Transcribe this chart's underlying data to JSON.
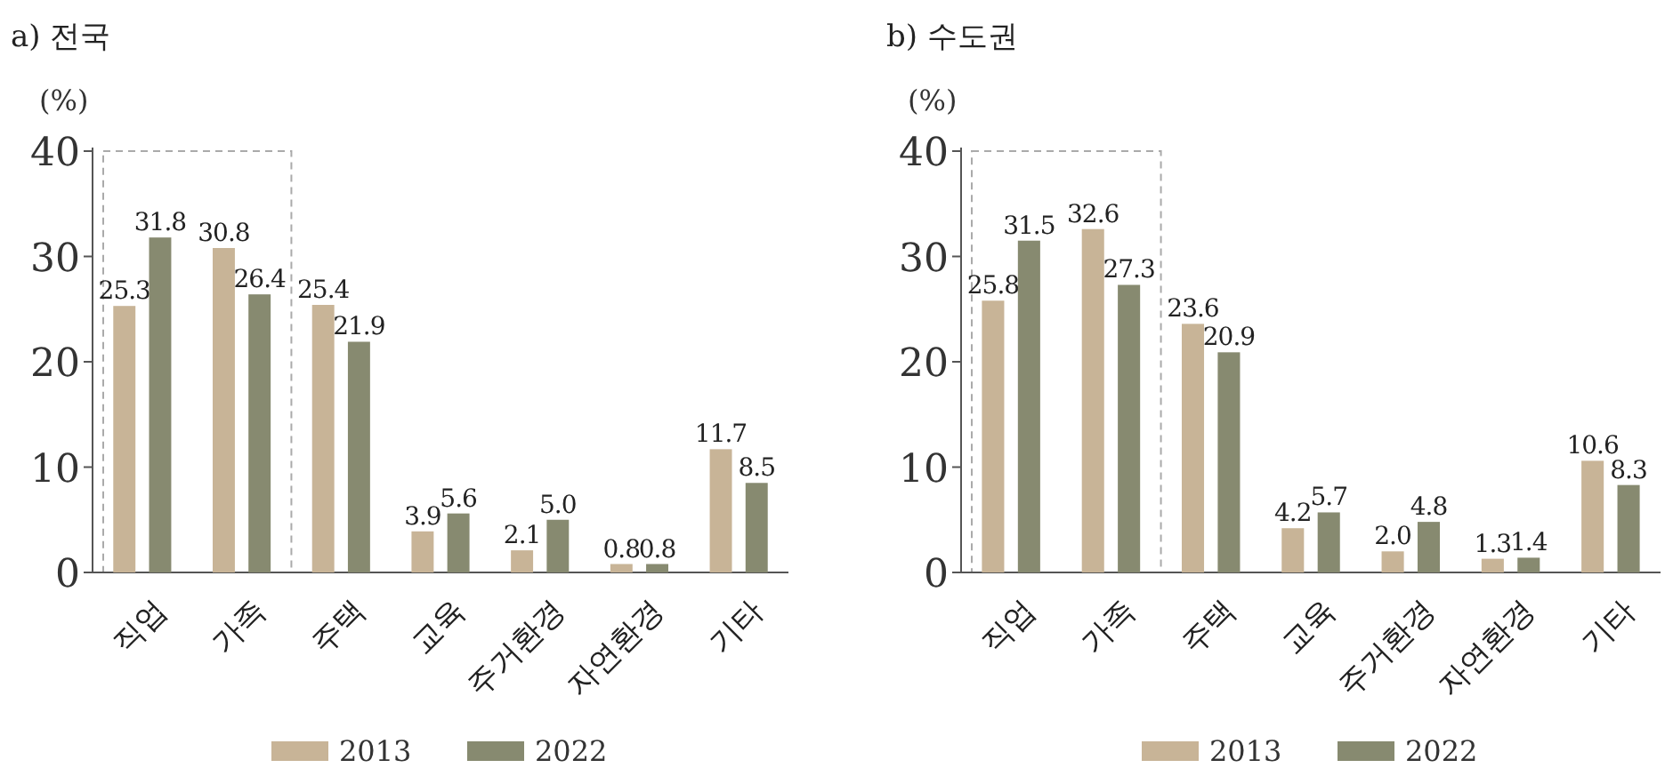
{
  "chart_data": [
    {
      "type": "bar",
      "title": "a) 전국",
      "ylabel": "(%)",
      "categories": [
        "직업",
        "가족",
        "주택",
        "교육",
        "주거환경",
        "자연환경",
        "기타"
      ],
      "series": [
        {
          "name": "2013",
          "color": "#c8b497",
          "values": [
            25.3,
            30.8,
            25.4,
            3.9,
            2.1,
            0.8,
            11.7
          ],
          "value_labels": [
            "25.3",
            "30.8",
            "25.4",
            "3.9",
            "2.1",
            "0.8",
            "11.7"
          ]
        },
        {
          "name": "2022",
          "color": "#878a70",
          "values": [
            31.8,
            26.4,
            21.9,
            5.6,
            5.0,
            0.8,
            8.5
          ],
          "value_labels": [
            "31.8",
            "26.4",
            "21.9",
            "5.6",
            "5.0",
            "0.8",
            "8.5"
          ]
        }
      ],
      "ylim": [
        0,
        40
      ],
      "yticks": [
        0,
        10,
        20,
        30,
        40
      ],
      "legend": "bottom"
    },
    {
      "type": "bar",
      "title": "b) 수도권",
      "ylabel": "(%)",
      "categories": [
        "직업",
        "가족",
        "주택",
        "교육",
        "주거환경",
        "자연환경",
        "기타"
      ],
      "series": [
        {
          "name": "2013",
          "color": "#c8b497",
          "values": [
            25.8,
            32.6,
            23.6,
            4.2,
            2.0,
            1.3,
            10.6
          ],
          "value_labels": [
            "25.8",
            "32.6",
            "23.6",
            "4.2",
            "2.0",
            "1.3",
            "10.6"
          ]
        },
        {
          "name": "2022",
          "color": "#878a70",
          "values": [
            31.5,
            27.3,
            20.9,
            5.7,
            4.8,
            1.4,
            8.3
          ],
          "value_labels": [
            "31.5",
            "27.3",
            "20.9",
            "5.7",
            "4.8",
            "1.4",
            "8.3"
          ]
        }
      ],
      "ylim": [
        0,
        40
      ],
      "yticks": [
        0,
        10,
        20,
        30,
        40
      ],
      "legend": "bottom"
    }
  ]
}
